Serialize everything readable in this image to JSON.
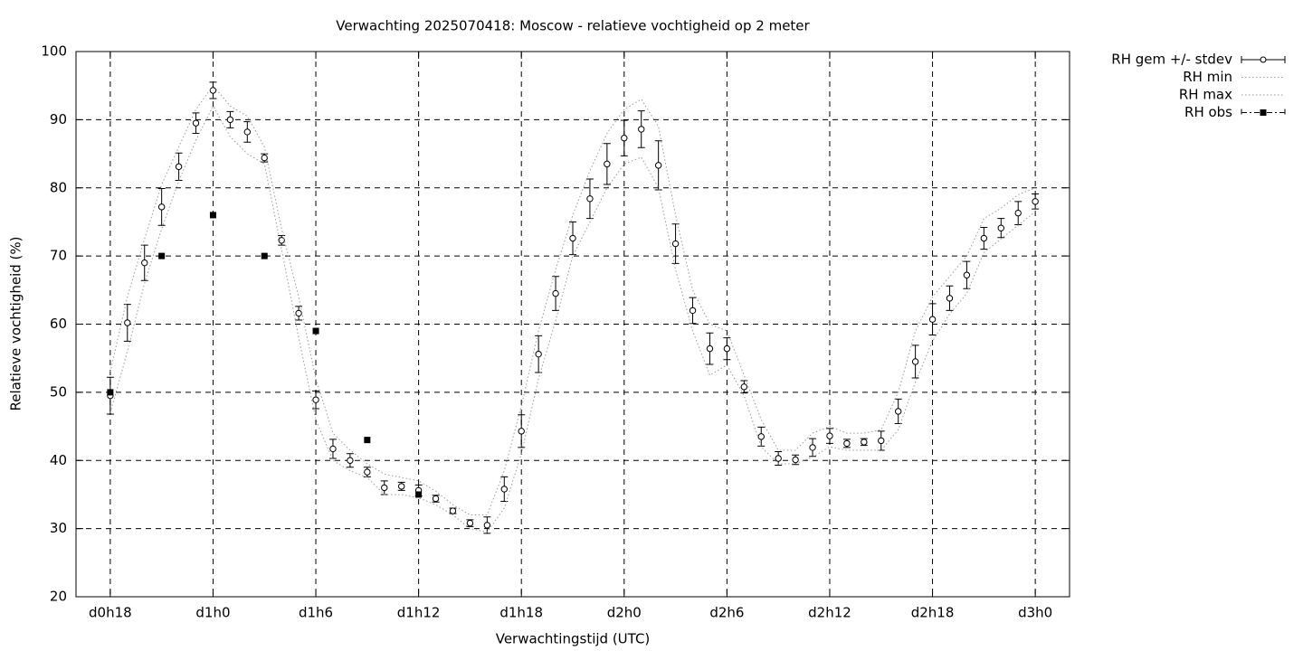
{
  "chart_data": {
    "type": "line",
    "title": "Verwachting 2025070418: Moscow - relatieve vochtigheid op 2 meter",
    "xlabel": "Verwachtingstijd (UTC)",
    "ylabel": "Relatieve vochtigheid (%)",
    "xlim": [
      16,
      74
    ],
    "ylim": [
      20,
      100
    ],
    "xticks": [
      {
        "value": 18,
        "label": "d0h18"
      },
      {
        "value": 24,
        "label": "d1h0"
      },
      {
        "value": 30,
        "label": "d1h6"
      },
      {
        "value": 36,
        "label": "d1h12"
      },
      {
        "value": 42,
        "label": "d1h18"
      },
      {
        "value": 48,
        "label": "d2h0"
      },
      {
        "value": 54,
        "label": "d2h6"
      },
      {
        "value": 60,
        "label": "d2h12"
      },
      {
        "value": 66,
        "label": "d2h18"
      },
      {
        "value": 72,
        "label": "d3h0"
      }
    ],
    "yticks": [
      20,
      30,
      40,
      50,
      60,
      70,
      80,
      90,
      100
    ],
    "grid": true,
    "legend": "outside-top-right",
    "series": [
      {
        "name": "RH gem +/- stdev",
        "color": "#000000",
        "style": "errorbars",
        "x": [
          18,
          19,
          20,
          21,
          22,
          23,
          24,
          25,
          26,
          27,
          28,
          29,
          30,
          31,
          32,
          33,
          34,
          35,
          36,
          37,
          38,
          39,
          40,
          41,
          42,
          43,
          44,
          45,
          46,
          47,
          48,
          49,
          50,
          51,
          52,
          53,
          54,
          55,
          56,
          57,
          58,
          59,
          60,
          61,
          62,
          63,
          64,
          65,
          66,
          67,
          68,
          69,
          70,
          71,
          72
        ],
        "values": [
          49.5,
          60.2,
          69,
          77.2,
          83.1,
          89.5,
          94.3,
          90,
          88.2,
          84.4,
          72.3,
          61.6,
          48.9,
          41.7,
          40,
          38.3,
          36,
          36.2,
          35.6,
          34.4,
          32.6,
          30.8,
          30.5,
          35.8,
          44.3,
          55.6,
          64.5,
          72.6,
          78.4,
          83.5,
          87.3,
          88.6,
          83.3,
          71.8,
          62,
          56.4,
          56.4,
          50.8,
          43.5,
          40.3,
          40.1,
          41.9,
          43.6,
          42.5,
          42.7,
          42.9,
          47.2,
          54.5,
          60.7,
          63.8,
          67.2,
          72.6,
          74.1,
          76.3,
          78
        ],
        "errors": [
          2.7,
          2.7,
          2.6,
          2.7,
          2,
          1.5,
          1.2,
          1.2,
          1.5,
          0.6,
          0.7,
          1,
          1.3,
          1.4,
          1,
          0.7,
          1,
          0.6,
          0.8,
          0.5,
          0.4,
          0.5,
          1.2,
          1.8,
          2.4,
          2.7,
          2.5,
          2.4,
          2.9,
          3,
          2.6,
          2.7,
          3.6,
          2.9,
          1.9,
          2.3,
          1.6,
          0.9,
          1.4,
          1,
          0.7,
          1.3,
          1.1,
          0.6,
          0.5,
          1.4,
          1.8,
          2.4,
          2.3,
          1.8,
          2,
          1.6,
          1.4,
          1.7,
          1.1
        ]
      },
      {
        "name": "RH min",
        "color": "#999999",
        "style": "dotted",
        "x": [
          18,
          19,
          20,
          21,
          22,
          23,
          24,
          25,
          26,
          27,
          28,
          29,
          30,
          31,
          32,
          33,
          34,
          35,
          36,
          37,
          38,
          39,
          40,
          41,
          42,
          43,
          44,
          45,
          46,
          47,
          48,
          49,
          50,
          51,
          52,
          53,
          54,
          55,
          56,
          57,
          58,
          59,
          60,
          61,
          62,
          63,
          64,
          65,
          66,
          67,
          68,
          69,
          70,
          71,
          72
        ],
        "values": [
          47,
          56,
          66,
          74,
          81,
          87,
          92,
          87.5,
          85,
          83.5,
          71,
          58,
          46,
          40,
          38.5,
          37.5,
          35,
          35,
          34.5,
          33.5,
          32,
          30,
          29.5,
          33,
          41,
          52,
          60.5,
          70,
          75,
          80,
          83.5,
          84.5,
          80,
          68,
          59,
          52.5,
          54,
          49.5,
          42,
          39.5,
          39.5,
          40.5,
          42,
          41.5,
          41.5,
          41.5,
          44.5,
          51.5,
          57.5,
          61.5,
          64.5,
          70.5,
          72.5,
          74.5,
          76.5
        ]
      },
      {
        "name": "RH max",
        "color": "#999999",
        "style": "dotted",
        "x": [
          18,
          19,
          20,
          21,
          22,
          23,
          24,
          25,
          26,
          27,
          28,
          29,
          30,
          31,
          32,
          33,
          34,
          35,
          36,
          37,
          38,
          39,
          40,
          41,
          42,
          43,
          44,
          45,
          46,
          47,
          48,
          49,
          50,
          51,
          52,
          53,
          54,
          55,
          56,
          57,
          58,
          59,
          60,
          61,
          62,
          63,
          64,
          65,
          66,
          67,
          68,
          69,
          70,
          71,
          72
        ],
        "values": [
          53,
          64,
          72.5,
          80.5,
          86,
          91.5,
          95,
          92,
          90.5,
          86,
          74,
          64,
          52,
          44,
          41.5,
          39.5,
          38,
          37.5,
          37,
          35.5,
          33.5,
          32,
          32,
          38.5,
          48,
          59,
          68,
          76,
          82.5,
          88,
          91.5,
          93,
          89,
          76,
          65,
          60,
          59,
          52.5,
          46,
          41.5,
          41.5,
          44,
          45,
          44,
          44,
          44.5,
          50,
          59,
          64,
          67,
          70,
          75.5,
          77,
          79,
          80
        ]
      },
      {
        "name": "RH obs",
        "color": "#000000",
        "style": "squares",
        "x": [
          18,
          21,
          24,
          27,
          30,
          33,
          36
        ],
        "values": [
          50,
          70,
          76,
          70,
          59,
          43,
          35
        ]
      }
    ]
  }
}
